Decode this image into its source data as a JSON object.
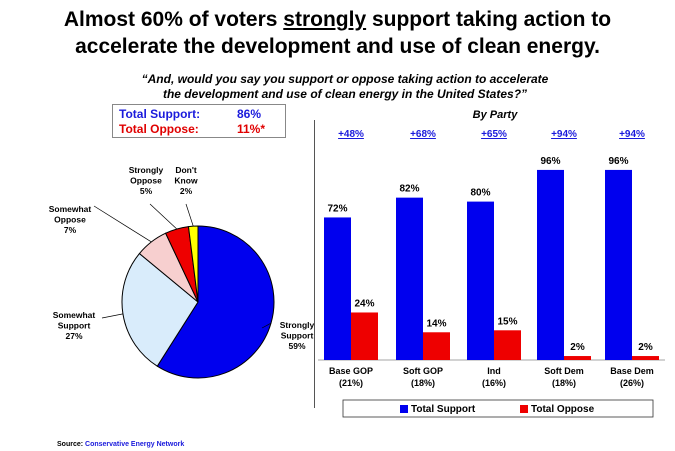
{
  "title_part1": "Almost 60% of voters ",
  "title_strong": "strongly",
  "title_part2": " support taking action to",
  "title_line2": "accelerate the development and use of clean energy.",
  "question_line1": "“And, would you say you support or oppose taking action to accelerate",
  "question_line2": "the development and use of clean energy in the United States?”",
  "totals": {
    "support_label": "Total Support:",
    "support_value": "86%",
    "oppose_label": "Total Oppose:",
    "oppose_value": "11%*"
  },
  "source_label": "Source: ",
  "source_value": "Conservative Energy Network",
  "colors": {
    "support": "#0000ee",
    "oppose": "#ee1111",
    "accent_text": "#1a1adc"
  },
  "chart_data": [
    {
      "type": "pie",
      "slices": [
        {
          "label_lines": [
            "Strongly",
            "Support",
            "59%"
          ],
          "value": 59,
          "color": "#0000ee"
        },
        {
          "label_lines": [
            "Somewhat",
            "Support",
            "27%"
          ],
          "value": 27,
          "color": "#d9ecfb"
        },
        {
          "label_lines": [
            "Somewhat",
            "Oppose",
            "7%"
          ],
          "value": 7,
          "color": "#f7cfcf"
        },
        {
          "label_lines": [
            "Strongly",
            "Oppose",
            "5%"
          ],
          "value": 5,
          "color": "#ee0000"
        },
        {
          "label_lines": [
            "Don't",
            "Know",
            "2%"
          ],
          "value": 2,
          "color": "#ffff00"
        }
      ]
    },
    {
      "type": "bar",
      "title": "By Party",
      "categories": [
        {
          "line1": "Base GOP",
          "line2": "(21%)"
        },
        {
          "line1": "Soft GOP",
          "line2": "(18%)"
        },
        {
          "line1": "Ind",
          "line2": "(16%)"
        },
        {
          "line1": "Soft Dem",
          "line2": "(18%)"
        },
        {
          "line1": "Base Dem",
          "line2": "(26%)"
        }
      ],
      "margins": [
        "+48%",
        "+68%",
        "+65%",
        "+94%",
        "+94%"
      ],
      "series": [
        {
          "name": "Total Support",
          "values": [
            72,
            82,
            80,
            96,
            96
          ],
          "color": "#0000ee"
        },
        {
          "name": "Total Oppose",
          "values": [
            24,
            14,
            15,
            2,
            2
          ],
          "color": "#ee0000"
        }
      ],
      "value_suffix": "%",
      "ylim": [
        0,
        100
      ],
      "legend_position": "bottom"
    }
  ]
}
